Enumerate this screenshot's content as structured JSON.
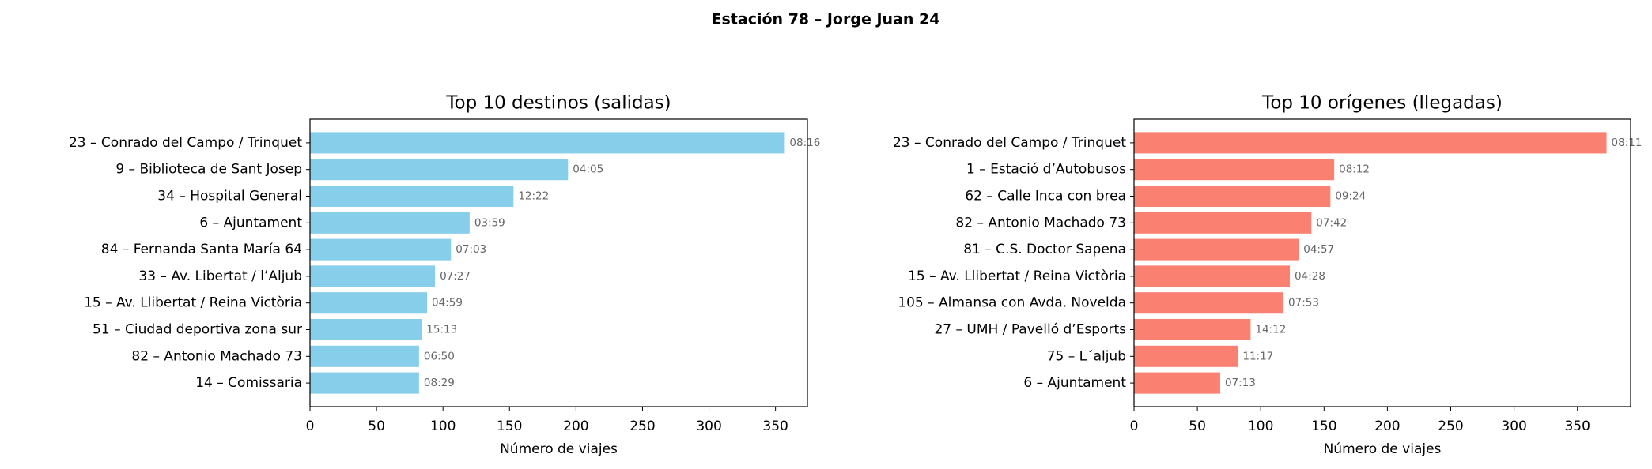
{
  "title": "Estación 78 – Jorge Juan 24",
  "chart_data": [
    {
      "type": "barh",
      "title": "Top 10 destinos (salidas)",
      "color": "#87ceeb",
      "categories": [
        "23 – Conrado del Campo / Trinquet",
        "9 – Biblioteca de Sant Josep",
        "34 – Hospital General",
        "6 – Ajuntament",
        "84 – Fernanda Santa María 64",
        "33 – Av. Libertat / l’Aljub",
        "15 – Av. Llibertat / Reina Victòria",
        "51 – Ciudad deportiva zona sur",
        "82 – Antonio Machado 73",
        "14 – Comissaria"
      ],
      "values": [
        357,
        194,
        153,
        120,
        106,
        94,
        88,
        84,
        82,
        82
      ],
      "bar_labels": [
        "08:16",
        "04:05",
        "12:22",
        "03:59",
        "07:03",
        "07:27",
        "04:59",
        "15:13",
        "06:50",
        "08:29"
      ],
      "xlim": [
        0,
        374
      ],
      "xticks": [
        0,
        50,
        100,
        150,
        200,
        250,
        300,
        350
      ],
      "xlabel": "Número de viajes"
    },
    {
      "type": "barh",
      "title": "Top 10 orígenes (llegadas)",
      "color": "#fa8072",
      "categories": [
        "23 – Conrado del Campo / Trinquet",
        "1 – Estació d’Autobusos",
        "62 – Calle Inca con brea",
        "82 – Antonio Machado 73",
        "81 – C.S. Doctor Sapena",
        "15 – Av. Llibertat / Reina Victòria",
        "105 – Almansa con Avda. Novelda",
        "27 – UMH / Pavelló d’Esports",
        "75 – L´aljub",
        "6 – Ajuntament"
      ],
      "values": [
        373,
        158,
        155,
        140,
        130,
        123,
        118,
        92,
        82,
        68
      ],
      "bar_labels": [
        "08:11",
        "08:12",
        "09:24",
        "07:42",
        "04:57",
        "04:28",
        "07:53",
        "14:12",
        "11:17",
        "07:13"
      ],
      "xlim": [
        0,
        392
      ],
      "xticks": [
        0,
        50,
        100,
        150,
        200,
        250,
        300,
        350
      ],
      "xlabel": "Número de viajes"
    }
  ]
}
